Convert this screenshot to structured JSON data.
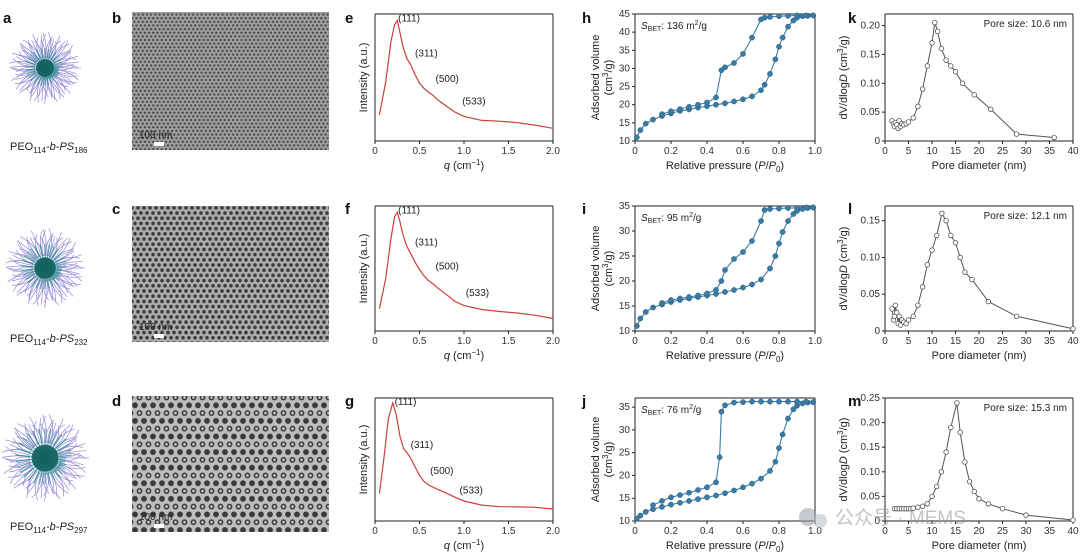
{
  "figure": {
    "panel_labels": [
      "a",
      "b",
      "c",
      "d",
      "e",
      "f",
      "g",
      "h",
      "i",
      "j",
      "k",
      "l",
      "m"
    ],
    "micelle_labels": [
      {
        "base": "PEO",
        "sub1": "114",
        "mid": "-b-PS",
        "sub2": "186"
      },
      {
        "base": "PEO",
        "sub1": "114",
        "mid": "-b-PS",
        "sub2": "232"
      },
      {
        "base": "PEO",
        "sub1": "114",
        "mid": "-b-PS",
        "sub2": "297"
      }
    ],
    "scale_bar": "100 nm",
    "watermark": "公众号 · MEMS",
    "colors": {
      "saxs": "#c8413a",
      "bet": "#3a7ca5",
      "pore": "#555555",
      "micelle_core": "#1d8a84",
      "micelle_shell": "#8e86d6"
    }
  },
  "chart_data": [
    {
      "id": "e",
      "type": "line",
      "title": "",
      "xlabel": "q (cm⁻¹)",
      "ylabel": "Intensity (a.u.)",
      "xlim": [
        0,
        2.0
      ],
      "ylim": [
        0,
        1
      ],
      "xticks": [
        0,
        0.5,
        1.0,
        1.5,
        2.0
      ],
      "xtick_labels": [
        "0",
        "0.5",
        "1.0",
        "1.5",
        "2.0"
      ],
      "x": [
        0.05,
        0.12,
        0.18,
        0.22,
        0.25,
        0.28,
        0.32,
        0.36,
        0.4,
        0.45,
        0.5,
        0.55,
        0.6,
        0.65,
        0.7,
        0.8,
        0.9,
        1.0,
        1.2,
        1.4,
        1.6,
        1.8,
        2.0
      ],
      "values": [
        0.18,
        0.45,
        0.8,
        0.95,
        1.0,
        0.9,
        0.75,
        0.65,
        0.6,
        0.52,
        0.46,
        0.42,
        0.38,
        0.34,
        0.3,
        0.25,
        0.21,
        0.18,
        0.14,
        0.12,
        0.1,
        0.085,
        0.07
      ],
      "annotations": [
        {
          "text": "(111)",
          "x": 0.26,
          "y": 0.98
        },
        {
          "text": "(311)",
          "x": 0.45,
          "y": 0.68
        },
        {
          "text": "(500)",
          "x": 0.68,
          "y": 0.46
        },
        {
          "text": "(533)",
          "x": 0.98,
          "y": 0.27
        }
      ]
    },
    {
      "id": "f",
      "type": "line",
      "title": "",
      "xlabel": "q (cm⁻¹)",
      "ylabel": "Intensity (a.u.)",
      "xlim": [
        0,
        2.0
      ],
      "ylim": [
        0,
        1
      ],
      "xticks": [
        0,
        0.5,
        1.0,
        1.5,
        2.0
      ],
      "xtick_labels": [
        "0",
        "0.5",
        "1.0",
        "1.5",
        "2.0"
      ],
      "x": [
        0.05,
        0.12,
        0.18,
        0.22,
        0.25,
        0.28,
        0.32,
        0.36,
        0.4,
        0.45,
        0.5,
        0.55,
        0.6,
        0.65,
        0.7,
        0.8,
        0.9,
        1.0,
        1.2,
        1.4,
        1.6,
        1.8,
        2.0
      ],
      "values": [
        0.15,
        0.4,
        0.75,
        0.95,
        1.0,
        0.92,
        0.78,
        0.68,
        0.62,
        0.55,
        0.5,
        0.45,
        0.4,
        0.36,
        0.32,
        0.27,
        0.22,
        0.19,
        0.15,
        0.12,
        0.1,
        0.085,
        0.07
      ],
      "annotations": [
        {
          "text": "(111)",
          "x": 0.26,
          "y": 0.98
        },
        {
          "text": "(311)",
          "x": 0.45,
          "y": 0.7
        },
        {
          "text": "(500)",
          "x": 0.68,
          "y": 0.49
        },
        {
          "text": "(533)",
          "x": 1.02,
          "y": 0.26
        }
      ]
    },
    {
      "id": "g",
      "type": "line",
      "title": "",
      "xlabel": "q (cm⁻¹)",
      "ylabel": "Intensity (a.u.)",
      "xlim": [
        0,
        2.0
      ],
      "ylim": [
        0,
        1
      ],
      "xticks": [
        0,
        0.5,
        1.0,
        1.5,
        2.0
      ],
      "xtick_labels": [
        "0",
        "0.5",
        "1.0",
        "1.5",
        "2.0"
      ],
      "x": [
        0.05,
        0.1,
        0.15,
        0.2,
        0.24,
        0.28,
        0.32,
        0.36,
        0.4,
        0.45,
        0.5,
        0.55,
        0.6,
        0.7,
        0.8,
        0.9,
        1.0,
        1.2,
        1.4,
        1.6,
        1.8,
        2.0
      ],
      "values": [
        0.2,
        0.5,
        0.85,
        1.0,
        0.9,
        0.72,
        0.6,
        0.55,
        0.5,
        0.43,
        0.37,
        0.32,
        0.28,
        0.23,
        0.19,
        0.16,
        0.14,
        0.11,
        0.09,
        0.075,
        0.065,
        0.055
      ],
      "annotations": [
        {
          "text": "(111)",
          "x": 0.22,
          "y": 0.98
        },
        {
          "text": "(311)",
          "x": 0.4,
          "y": 0.6
        },
        {
          "text": "(500)",
          "x": 0.62,
          "y": 0.37
        },
        {
          "text": "(533)",
          "x": 0.95,
          "y": 0.2
        }
      ]
    },
    {
      "id": "h",
      "type": "line",
      "xlabel": "Relative pressure (P/P₀)",
      "ylabel": "Adsorbed volume (cm³/g)",
      "xlim": [
        0,
        1.0
      ],
      "ylim": [
        10,
        45
      ],
      "xticks": [
        0,
        0.2,
        0.4,
        0.6,
        0.8,
        1.0
      ],
      "xtick_labels": [
        "0",
        "0.2",
        "0.4",
        "0.6",
        "0.8",
        "1.0"
      ],
      "yticks": [
        10,
        15,
        20,
        25,
        30,
        35,
        40,
        45
      ],
      "ytick_labels": [
        "10",
        "15",
        "20",
        "25",
        "30",
        "35",
        "40",
        "45"
      ],
      "text_annotation": "S_BET: 136 m²/g",
      "text_parts": {
        "s": "S",
        "sub": "BET",
        "val": ": 136 m",
        "sup": "2",
        "unit": "/g"
      },
      "series": [
        {
          "name": "adsorption",
          "x": [
            0.01,
            0.03,
            0.06,
            0.1,
            0.15,
            0.2,
            0.25,
            0.3,
            0.35,
            0.4,
            0.45,
            0.5,
            0.55,
            0.6,
            0.65,
            0.7,
            0.72,
            0.75,
            0.78,
            0.8,
            0.82,
            0.85,
            0.88,
            0.9,
            0.93,
            0.96,
            0.99
          ],
          "values": [
            11,
            13,
            14.8,
            15.9,
            16.9,
            17.6,
            18.3,
            18.7,
            19.2,
            19.6,
            20,
            20.4,
            20.9,
            21.5,
            22.3,
            24,
            25.5,
            28.5,
            32.5,
            36,
            38.5,
            41.5,
            43.2,
            44,
            44.4,
            44.5,
            44.6
          ]
        },
        {
          "name": "desorption",
          "x": [
            0.99,
            0.95,
            0.9,
            0.85,
            0.8,
            0.75,
            0.72,
            0.7,
            0.65,
            0.6,
            0.55,
            0.5,
            0.48,
            0.45,
            0.4,
            0.35,
            0.3,
            0.25,
            0.2,
            0.15
          ],
          "values": [
            44.6,
            44.6,
            44.6,
            44.5,
            44.4,
            44.2,
            44,
            43.5,
            38.5,
            34,
            31.5,
            30.3,
            29.5,
            22,
            20.6,
            20,
            19.4,
            18.8,
            18.2,
            17.4
          ]
        }
      ]
    },
    {
      "id": "i",
      "type": "line",
      "xlabel": "Relative pressure (P/P₀)",
      "ylabel": "Adsorbed volume (cm³/g)",
      "xlim": [
        0,
        1.0
      ],
      "ylim": [
        10,
        35
      ],
      "xticks": [
        0,
        0.2,
        0.4,
        0.6,
        0.8,
        1.0
      ],
      "xtick_labels": [
        "0",
        "0.2",
        "0.4",
        "0.6",
        "0.8",
        "1.0"
      ],
      "yticks": [
        10,
        15,
        20,
        25,
        30,
        35
      ],
      "ytick_labels": [
        "10",
        "15",
        "20",
        "25",
        "30",
        "35"
      ],
      "text_annotation": "S_BET: 95 m²/g",
      "text_parts": {
        "s": "S",
        "sub": "BET",
        "val": ": 95 m",
        "sup": "2",
        "unit": "/g"
      },
      "series": [
        {
          "name": "adsorption",
          "x": [
            0.01,
            0.03,
            0.06,
            0.1,
            0.15,
            0.2,
            0.25,
            0.3,
            0.35,
            0.4,
            0.45,
            0.5,
            0.55,
            0.6,
            0.65,
            0.7,
            0.75,
            0.78,
            0.8,
            0.82,
            0.85,
            0.88,
            0.9,
            0.93,
            0.96,
            0.99
          ],
          "values": [
            11,
            12.5,
            13.8,
            14.7,
            15.3,
            15.8,
            16.2,
            16.5,
            16.8,
            17.1,
            17.4,
            17.8,
            18.2,
            18.7,
            19.3,
            20.3,
            22.5,
            25,
            27.5,
            29.8,
            32,
            33.4,
            34,
            34.4,
            34.6,
            34.7
          ]
        },
        {
          "name": "desorption",
          "x": [
            0.99,
            0.95,
            0.9,
            0.85,
            0.8,
            0.75,
            0.72,
            0.7,
            0.65,
            0.6,
            0.55,
            0.5,
            0.48,
            0.45,
            0.4,
            0.35,
            0.3,
            0.25,
            0.2,
            0.15
          ],
          "values": [
            34.7,
            34.7,
            34.6,
            34.6,
            34.5,
            34.4,
            34.2,
            32,
            28,
            25.8,
            24.4,
            22.2,
            20,
            18.2,
            17.5,
            17.1,
            16.8,
            16.5,
            16.2,
            15.6
          ]
        }
      ]
    },
    {
      "id": "j",
      "type": "line",
      "xlabel": "Relative pressure (P/P₀)",
      "ylabel": "Adsorbed volume (cm³/g)",
      "xlim": [
        0,
        1.0
      ],
      "ylim": [
        10,
        37
      ],
      "xticks": [
        0,
        0.2,
        0.4,
        0.6,
        0.8,
        1.0
      ],
      "xtick_labels": [
        "0",
        "0.2",
        "0.4",
        "0.6",
        "0.8",
        "1.0"
      ],
      "yticks": [
        10,
        15,
        20,
        25,
        30,
        35
      ],
      "ytick_labels": [
        "10",
        "15",
        "20",
        "25",
        "30",
        "35"
      ],
      "text_annotation": "S_BET: 76 m²/g",
      "text_parts": {
        "s": "S",
        "sub": "BET",
        "val": ": 76 m",
        "sup": "2",
        "unit": "/g"
      },
      "series": [
        {
          "name": "adsorption",
          "x": [
            0.01,
            0.03,
            0.06,
            0.1,
            0.15,
            0.2,
            0.25,
            0.3,
            0.35,
            0.4,
            0.45,
            0.5,
            0.55,
            0.6,
            0.65,
            0.7,
            0.75,
            0.78,
            0.8,
            0.82,
            0.85,
            0.88,
            0.9,
            0.93,
            0.96,
            0.99
          ],
          "values": [
            10.5,
            11.2,
            12,
            12.6,
            13.1,
            13.6,
            14,
            14.4,
            14.8,
            15.2,
            15.6,
            16.1,
            16.7,
            17.4,
            18.2,
            19.3,
            21,
            23,
            26,
            29,
            32.5,
            34.5,
            35.3,
            35.8,
            36,
            36.1
          ]
        },
        {
          "name": "desorption",
          "x": [
            0.99,
            0.95,
            0.9,
            0.85,
            0.8,
            0.75,
            0.7,
            0.65,
            0.6,
            0.55,
            0.5,
            0.48,
            0.47,
            0.45,
            0.4,
            0.35,
            0.3,
            0.25,
            0.2,
            0.15,
            0.1
          ],
          "values": [
            36.1,
            36.2,
            36.2,
            36.2,
            36.2,
            36.2,
            36.2,
            36.2,
            36.1,
            36,
            35.4,
            34,
            24,
            18.5,
            17.4,
            16.8,
            16.2,
            15.7,
            15.2,
            14.4,
            13.5
          ]
        }
      ]
    },
    {
      "id": "k",
      "type": "line",
      "xlabel": "Pore diameter (nm)",
      "ylabel": "dV/dlogD (cm³/g)",
      "xlim": [
        0,
        40
      ],
      "ylim": [
        0,
        0.22
      ],
      "xticks": [
        0,
        5,
        10,
        15,
        20,
        25,
        30,
        35,
        40
      ],
      "xtick_labels": [
        "0",
        "5",
        "10",
        "15",
        "20",
        "25",
        "30",
        "35",
        "40"
      ],
      "yticks": [
        0,
        0.05,
        0.1,
        0.15,
        0.2
      ],
      "ytick_labels": [
        "0",
        "0.05",
        "0.10",
        "0.15",
        "0.20"
      ],
      "text_annotation": "Pore size: 10.6 nm",
      "x": [
        1.5,
        1.8,
        2.0,
        2.2,
        2.5,
        2.8,
        3.0,
        3.3,
        3.6,
        4.0,
        4.5,
        5.0,
        6.0,
        7.0,
        8.0,
        9.0,
        10.0,
        10.6,
        11.2,
        12.0,
        13.0,
        14.0,
        15.0,
        16.5,
        19.0,
        22.5,
        28.0,
        36.0
      ],
      "values": [
        0.035,
        0.03,
        0.025,
        0.032,
        0.028,
        0.022,
        0.035,
        0.025,
        0.03,
        0.028,
        0.03,
        0.033,
        0.04,
        0.06,
        0.09,
        0.13,
        0.17,
        0.205,
        0.19,
        0.16,
        0.14,
        0.13,
        0.12,
        0.1,
        0.08,
        0.055,
        0.012,
        0.006
      ]
    },
    {
      "id": "l",
      "type": "line",
      "xlabel": "Pore diameter (nm)",
      "ylabel": "dV/dlogD (cm³/g)",
      "xlim": [
        0,
        40
      ],
      "ylim": [
        0,
        0.17
      ],
      "xticks": [
        0,
        5,
        10,
        15,
        20,
        25,
        30,
        35,
        40
      ],
      "xtick_labels": [
        "0",
        "5",
        "10",
        "15",
        "20",
        "25",
        "30",
        "35",
        "40"
      ],
      "yticks": [
        0,
        0.05,
        0.1,
        0.15
      ],
      "ytick_labels": [
        "0",
        "0.05",
        "0.10",
        "0.15"
      ],
      "text_annotation": "Pore size: 12.1 nm",
      "x": [
        1.5,
        1.8,
        2.0,
        2.2,
        2.5,
        2.8,
        3.0,
        3.3,
        3.6,
        4.0,
        4.5,
        5.0,
        6.0,
        7.0,
        8.0,
        9.0,
        10.0,
        11.0,
        12.1,
        13.0,
        14.0,
        15.0,
        16.0,
        17.0,
        18.5,
        22.0,
        28.0,
        40.0
      ],
      "values": [
        0.03,
        0.015,
        0.02,
        0.035,
        0.025,
        0.01,
        0.02,
        0.008,
        0.015,
        0.012,
        0.01,
        0.015,
        0.02,
        0.035,
        0.06,
        0.09,
        0.11,
        0.13,
        0.16,
        0.15,
        0.13,
        0.12,
        0.1,
        0.08,
        0.07,
        0.04,
        0.02,
        0.003
      ]
    },
    {
      "id": "m",
      "type": "line",
      "xlabel": "Pore diameter (nm)",
      "ylabel": "dV/dlogD (cm³/g)",
      "xlim": [
        0,
        40
      ],
      "ylim": [
        0,
        0.25
      ],
      "xticks": [
        0,
        5,
        10,
        15,
        20,
        25,
        30,
        35,
        40
      ],
      "xtick_labels": [
        "0",
        "5",
        "10",
        "15",
        "20",
        "25",
        "30",
        "35",
        "40"
      ],
      "yticks": [
        0,
        0.05,
        0.1,
        0.15,
        0.2,
        0.25
      ],
      "ytick_labels": [
        "0",
        "0.05",
        "0.10",
        "0.15",
        "0.20",
        "0.25"
      ],
      "text_annotation": "Pore size: 15.3 nm",
      "x": [
        2.0,
        2.5,
        3.0,
        3.5,
        4.0,
        4.5,
        5.0,
        5.5,
        6.0,
        7.0,
        8.0,
        9.0,
        10.0,
        11.0,
        12.0,
        13.0,
        14.0,
        15.3,
        16.0,
        17.0,
        18.0,
        19.0,
        20.0,
        22.0,
        25.0,
        30.0,
        40.0
      ],
      "values": [
        0.025,
        0.025,
        0.025,
        0.025,
        0.025,
        0.025,
        0.025,
        0.025,
        0.026,
        0.028,
        0.03,
        0.035,
        0.05,
        0.07,
        0.1,
        0.14,
        0.19,
        0.24,
        0.18,
        0.12,
        0.08,
        0.06,
        0.045,
        0.035,
        0.025,
        0.012,
        0.002
      ]
    }
  ]
}
